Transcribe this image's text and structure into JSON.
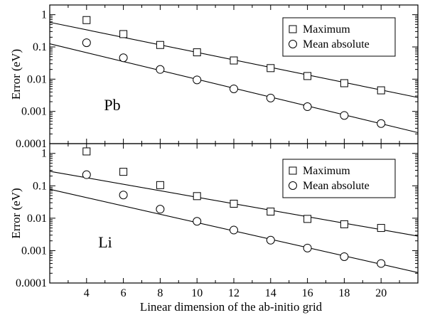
{
  "chart_data": [
    {
      "type": "scatter",
      "panel_label": "Pb",
      "ylabel": "Error (eV)",
      "xlabel": "",
      "xlim": [
        2,
        22
      ],
      "ylim": [
        0.0001,
        2
      ],
      "y_scale": "log",
      "x_ticks": [
        4,
        6,
        8,
        10,
        12,
        14,
        16,
        18,
        20
      ],
      "y_ticks": [
        0.0001,
        0.001,
        0.01,
        0.1,
        1
      ],
      "y_tick_labels": [
        "0.0001",
        "0.001",
        "0.01",
        "0.1",
        "1"
      ],
      "legend_position": "top-right",
      "series": [
        {
          "name": "Maximum",
          "marker": "square",
          "x": [
            4,
            6,
            8,
            10,
            12,
            14,
            16,
            18,
            20
          ],
          "y": [
            0.68,
            0.25,
            0.115,
            0.068,
            0.038,
            0.022,
            0.0125,
            0.0075,
            0.0045
          ],
          "fit": {
            "x": [
              2,
              22
            ],
            "y": [
              0.58,
              0.0027
            ]
          }
        },
        {
          "name": "Mean absolute",
          "marker": "circle",
          "x": [
            4,
            6,
            8,
            10,
            12,
            14,
            16,
            18,
            20
          ],
          "y": [
            0.135,
            0.046,
            0.02,
            0.0095,
            0.005,
            0.0026,
            0.0014,
            0.00075,
            0.00042
          ],
          "fit": {
            "x": [
              2,
              22
            ],
            "y": [
              0.125,
              0.00022
            ]
          }
        }
      ]
    },
    {
      "type": "scatter",
      "panel_label": "Li",
      "ylabel": "Error (eV)",
      "xlabel": "Linear dimension of the ab-initio grid",
      "xlim": [
        2,
        22
      ],
      "ylim": [
        0.0001,
        2
      ],
      "y_scale": "log",
      "x_ticks": [
        4,
        6,
        8,
        10,
        12,
        14,
        16,
        18,
        20
      ],
      "x_tick_labels": [
        "4",
        "6",
        "8",
        "10",
        "12",
        "14",
        "16",
        "18",
        "20"
      ],
      "y_ticks": [
        0.0001,
        0.001,
        0.01,
        0.1,
        1
      ],
      "y_tick_labels": [
        "0.0001",
        "0.001",
        "0.01",
        "0.1",
        "1"
      ],
      "legend_position": "top-right",
      "series": [
        {
          "name": "Maximum",
          "marker": "square",
          "x": [
            4,
            6,
            8,
            10,
            12,
            14,
            16,
            18,
            20
          ],
          "y": [
            1.15,
            0.27,
            0.105,
            0.048,
            0.028,
            0.016,
            0.0095,
            0.0065,
            0.005
          ],
          "fit": {
            "x": [
              2,
              22
            ],
            "y": [
              0.28,
              0.0028
            ]
          }
        },
        {
          "name": "Mean absolute",
          "marker": "circle",
          "x": [
            4,
            6,
            8,
            10,
            12,
            14,
            16,
            18,
            20
          ],
          "y": [
            0.22,
            0.052,
            0.019,
            0.008,
            0.0043,
            0.0021,
            0.0012,
            0.00065,
            0.0004
          ],
          "fit": {
            "x": [
              2,
              22
            ],
            "y": [
              0.078,
              0.00021
            ]
          }
        }
      ]
    }
  ]
}
